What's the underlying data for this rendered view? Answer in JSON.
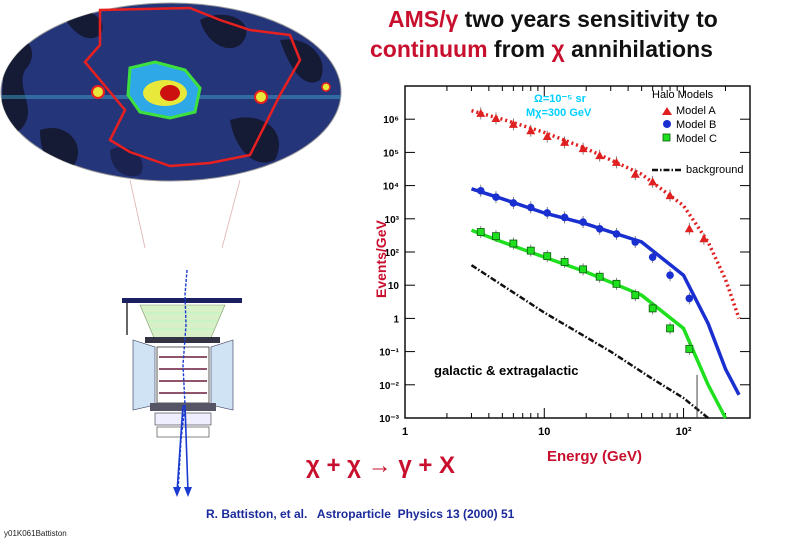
{
  "header": {
    "title_line1_a": "AMS/",
    "title_line1_symbol": "γ",
    "title_line1_b": " two years sensitivity to",
    "title_line2_a": "continuum",
    "title_line2_b": " from ",
    "title_line2_symbol": "χ",
    "title_line2_c": " annihilations"
  },
  "equation": "χ + χ → γ + X",
  "reference": "R. Battiston, et al.   Astroparticle  Physics 13 (2000) 51",
  "footnote": "y01K061Battiston",
  "colors": {
    "title_red": "#c8102e",
    "model_a": "#e02020",
    "model_b": "#1a2fd0",
    "model_c": "#1ee01e",
    "background_curve": "#111111",
    "info_text": "#00d0ff",
    "reference_blue": "#1a2a9a"
  },
  "chart_data": {
    "type": "line",
    "xlabel": "Energy (GeV)",
    "ylabel": "Events/GeV",
    "xscale": "log",
    "yscale": "log",
    "xlim": [
      1,
      300
    ],
    "ylim": [
      0.001,
      10000000
    ],
    "x_ticks": [
      {
        "value": 1,
        "label": "1"
      },
      {
        "value": 10,
        "label": "10"
      },
      {
        "value": 100,
        "label": "10²"
      }
    ],
    "y_ticks": [
      {
        "value": 0.001,
        "label": "10⁻³"
      },
      {
        "value": 0.01,
        "label": "10⁻²"
      },
      {
        "value": 0.1,
        "label": "10⁻¹"
      },
      {
        "value": 1,
        "label": "1"
      },
      {
        "value": 10,
        "label": "10"
      },
      {
        "value": 100,
        "label": "10²"
      },
      {
        "value": 1000,
        "label": "10³"
      },
      {
        "value": 10000,
        "label": "10⁴"
      },
      {
        "value": 100000,
        "label": "10⁵"
      },
      {
        "value": 1000000,
        "label": "10⁶"
      }
    ],
    "info_lines": [
      "Ω=10⁻⁵ sr",
      "Mχ=300 GeV"
    ],
    "legend_title": "Halo Models",
    "annotation": "galactic & extragalactic",
    "series": [
      {
        "name": "Model A",
        "marker": "triangle",
        "line": "dotted",
        "color": "#e02020",
        "points_x": [
          3.5,
          4.5,
          6,
          8,
          10.5,
          14,
          19,
          25,
          33,
          45,
          60,
          80,
          110,
          140
        ],
        "points_y": [
          1500000,
          1050000,
          700000,
          450000,
          300000,
          200000,
          130000,
          80000,
          50000,
          22000,
          13000,
          5000,
          500,
          250
        ],
        "curve_x": [
          3,
          5,
          10,
          20,
          50,
          100,
          150,
          200,
          250
        ],
        "curve_y": [
          1800000,
          1000000,
          400000,
          130000,
          22000,
          2500,
          200,
          15,
          1
        ]
      },
      {
        "name": "Model B",
        "marker": "circle",
        "line": "solid",
        "color": "#1a2fd0",
        "points_x": [
          3.5,
          4.5,
          6,
          8,
          10.5,
          14,
          19,
          25,
          33,
          45,
          60,
          80,
          110
        ],
        "points_y": [
          7000,
          4500,
          3000,
          2200,
          1500,
          1100,
          800,
          500,
          350,
          200,
          70,
          20,
          4
        ],
        "curve_x": [
          3,
          5,
          10,
          20,
          50,
          100,
          150,
          200,
          250
        ],
        "curve_y": [
          8000,
          4000,
          1500,
          700,
          200,
          20,
          0.7,
          0.03,
          0.005
        ]
      },
      {
        "name": "Model C",
        "marker": "square",
        "line": "solid",
        "color": "#1ee01e",
        "points_x": [
          3.5,
          4.5,
          6,
          8,
          10.5,
          14,
          19,
          25,
          33,
          45,
          60,
          80,
          110
        ],
        "points_y": [
          400,
          300,
          180,
          110,
          75,
          50,
          30,
          18,
          11,
          5,
          2,
          0.5,
          0.12
        ],
        "curve_x": [
          3,
          5,
          10,
          20,
          50,
          100,
          150,
          200
        ],
        "curve_y": [
          450,
          200,
          70,
          25,
          5,
          0.5,
          0.01,
          0.001
        ]
      },
      {
        "name": "background",
        "marker": "none",
        "line": "dashdot",
        "color": "#111111",
        "curve_x": [
          3,
          10,
          30,
          60,
          100,
          150
        ],
        "curve_y": [
          40,
          1.5,
          0.1,
          0.015,
          0.004,
          0.001
        ]
      }
    ]
  }
}
